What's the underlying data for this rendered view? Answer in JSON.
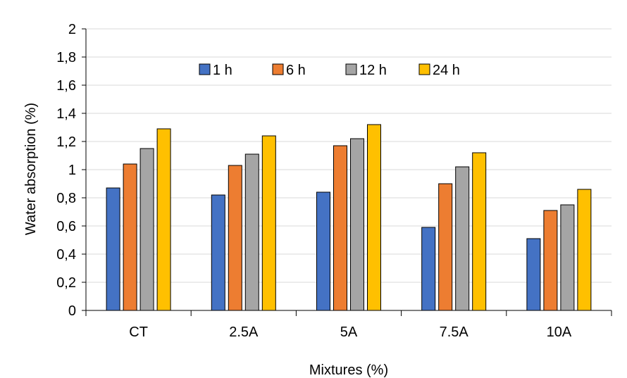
{
  "chart_data": {
    "type": "bar",
    "title": "",
    "xlabel": "Mixtures (%)",
    "ylabel": "Water absorption (%)",
    "categories": [
      "CT",
      "2.5A",
      "5A",
      "7.5A",
      "10A"
    ],
    "ylim": [
      0,
      2
    ],
    "yticks": [
      0,
      0.2,
      0.4,
      0.6,
      0.8,
      1,
      1.2,
      1.4,
      1.6,
      1.8,
      2
    ],
    "ytick_labels": [
      "0",
      "0,2",
      "0,4",
      "0,6",
      "0,8",
      "1",
      "1,2",
      "1,4",
      "1,6",
      "1,8",
      "2"
    ],
    "grid": true,
    "legend_position": "top-center",
    "series": [
      {
        "name": "1 h",
        "color": "#4472C4",
        "values": [
          0.87,
          0.82,
          0.84,
          0.59,
          0.51
        ]
      },
      {
        "name": "6 h",
        "color": "#ED7D31",
        "values": [
          1.04,
          1.03,
          1.17,
          0.9,
          0.71
        ]
      },
      {
        "name": "12 h",
        "color": "#A5A5A5",
        "values": [
          1.15,
          1.11,
          1.22,
          1.02,
          0.75
        ]
      },
      {
        "name": "24 h",
        "color": "#FFC000",
        "values": [
          1.29,
          1.24,
          1.32,
          1.12,
          0.86
        ]
      }
    ]
  }
}
